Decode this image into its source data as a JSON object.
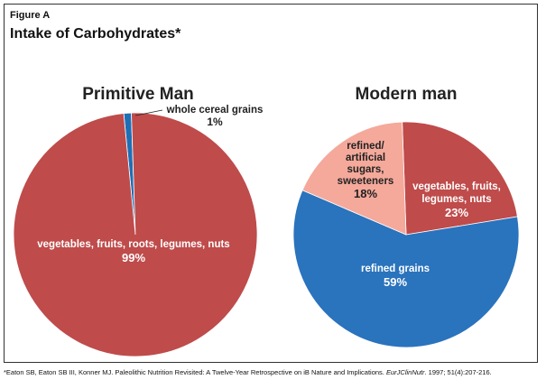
{
  "figure": {
    "label": "Figure A",
    "title": "Intake of Carbohydrates*"
  },
  "chart_data": [
    {
      "type": "pie",
      "title": "Primitive Man",
      "slices": [
        {
          "label": "vegetables, fruits, roots, legumes, nuts",
          "value": 99,
          "display": "99%",
          "color": "#bf4b4b"
        },
        {
          "label": "whole cereal grains",
          "value": 1,
          "display": "1%",
          "color": "#1f6fb5"
        }
      ]
    },
    {
      "type": "pie",
      "title": "Modern man",
      "slices": [
        {
          "label": "vegetables, fruits, legumes, nuts",
          "value": 23,
          "display": "23%",
          "color": "#bf4b4b"
        },
        {
          "label": "refined grains",
          "value": 59,
          "display": "59%",
          "color": "#2a73bd"
        },
        {
          "label": "refined/ artificial sugars, sweeteners",
          "value": 18,
          "display": "18%",
          "color": "#f4a99b"
        }
      ]
    }
  ],
  "footnote": {
    "text": "*Eaton SB, Eaton SB III, Konner MJ. Paleolithic Nutrition Revisited: A Twelve-Year Retrospective on iB Nature and Implications.",
    "journal": "EurJClinNutr",
    "citation": ". 1997; 51(4):207-216."
  }
}
